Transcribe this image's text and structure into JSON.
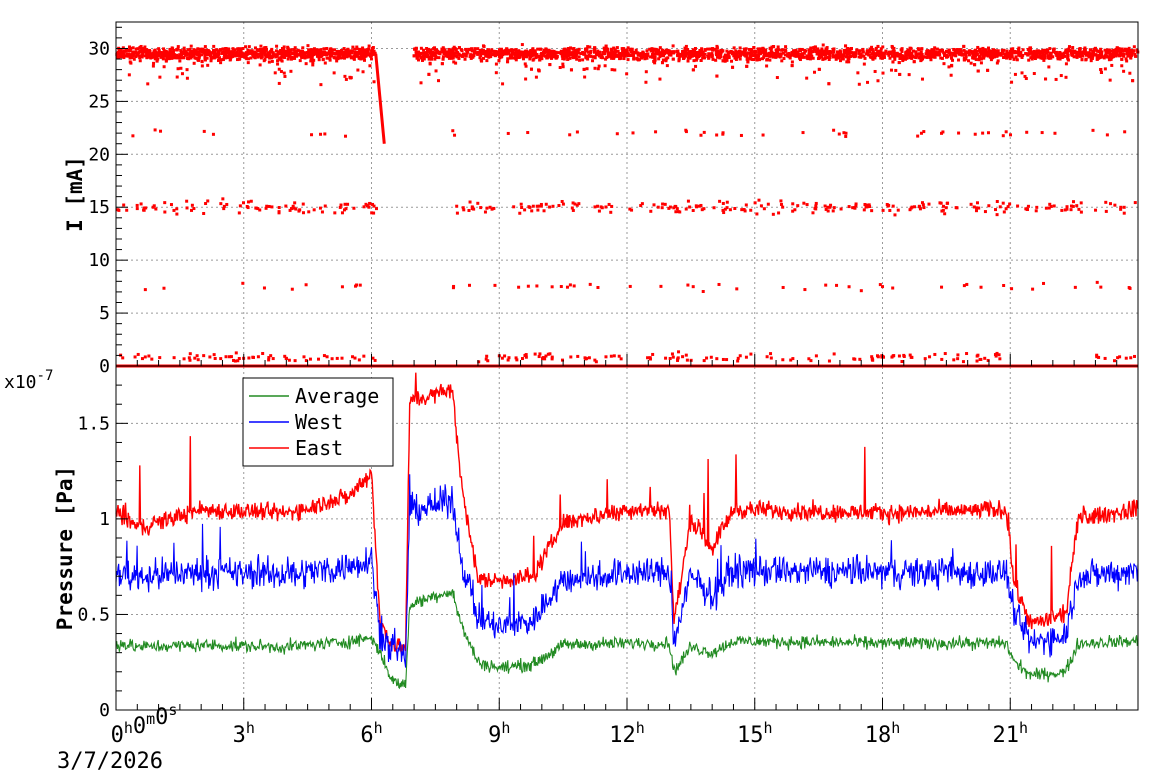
{
  "colors": {
    "average": "#228b22",
    "west": "#0000ff",
    "east": "#ff0000",
    "grid": "#9a9a9a",
    "axis": "#000000"
  },
  "chart_data": [
    {
      "type": "scatter",
      "ylabel": "I [mA]",
      "ylim": [
        0,
        32.5
      ],
      "yticks": [
        0,
        5,
        10,
        15,
        20,
        25,
        30
      ],
      "xlim_hours": [
        0,
        24
      ],
      "grid": true,
      "series": [
        {
          "color": "east",
          "bands": [
            {
              "level": 29.5,
              "spread": 0.9,
              "segments": [
                [
                  0,
                  6.1
                ],
                [
                  7.0,
                  24
                ]
              ]
            },
            {
              "level": 15.0,
              "spread": 0.9,
              "segments": [
                [
                  0.0,
                  6.2
                ],
                [
                  8.0,
                  24
                ]
              ]
            },
            {
              "level": 0.0,
              "spread": 0.0,
              "segments": [
                [
                  0,
                  24
                ]
              ]
            },
            {
              "level": 0.8,
              "spread": 0.6,
              "segments": [
                [
                  0.1,
                  6.1
                ],
                [
                  8.5,
                  20.8
                ],
                [
                  23.0,
                  24
                ]
              ]
            }
          ],
          "drop": {
            "from_hours": 6.1,
            "to_hours": 6.3,
            "from_value": 29.5,
            "to_value": 21.0
          },
          "sparse_levels": [
            22.0,
            7.5
          ]
        }
      ]
    },
    {
      "type": "line",
      "ylabel": "Pressure [Pa]",
      "y_multiplier": "x10",
      "y_exponent": "-7",
      "ylim": [
        0,
        1.8
      ],
      "yticks": [
        "0",
        "0.5",
        "1",
        "1.5"
      ],
      "ytick_values": [
        0,
        0.5,
        1.0,
        1.5
      ],
      "xlim_hours": [
        0,
        24
      ],
      "grid": true,
      "legend": {
        "position": "top-left",
        "entries": [
          "Average",
          "West",
          "East"
        ]
      },
      "series": [
        {
          "name": "Average",
          "color": "average",
          "profile": [
            [
              0,
              0.35
            ],
            [
              0.5,
              0.33
            ],
            [
              2,
              0.34
            ],
            [
              4,
              0.33
            ],
            [
              5.5,
              0.36
            ],
            [
              6.0,
              0.38
            ],
            [
              6.2,
              0.3
            ],
            [
              6.5,
              0.15
            ],
            [
              6.8,
              0.13
            ],
            [
              6.9,
              0.55
            ],
            [
              7.5,
              0.6
            ],
            [
              7.9,
              0.62
            ],
            [
              8.1,
              0.45
            ],
            [
              8.5,
              0.25
            ],
            [
              9.0,
              0.22
            ],
            [
              9.8,
              0.24
            ],
            [
              10.5,
              0.34
            ],
            [
              12,
              0.35
            ],
            [
              13.0,
              0.35
            ],
            [
              13.1,
              0.2
            ],
            [
              13.5,
              0.33
            ],
            [
              14.0,
              0.3
            ],
            [
              14.5,
              0.36
            ],
            [
              18,
              0.35
            ],
            [
              20.9,
              0.35
            ],
            [
              21.1,
              0.25
            ],
            [
              21.5,
              0.18
            ],
            [
              22.3,
              0.2
            ],
            [
              22.6,
              0.35
            ],
            [
              24,
              0.36
            ]
          ],
          "noise": 0.05
        },
        {
          "name": "West",
          "color": "west",
          "profile": [
            [
              0,
              0.72
            ],
            [
              0.5,
              0.7
            ],
            [
              2,
              0.72
            ],
            [
              4,
              0.71
            ],
            [
              5.5,
              0.75
            ],
            [
              6.0,
              0.8
            ],
            [
              6.2,
              0.4
            ],
            [
              6.5,
              0.3
            ],
            [
              6.8,
              0.28
            ],
            [
              6.9,
              1.05
            ],
            [
              7.5,
              1.07
            ],
            [
              7.9,
              1.1
            ],
            [
              8.1,
              0.8
            ],
            [
              8.5,
              0.48
            ],
            [
              9.0,
              0.43
            ],
            [
              9.8,
              0.47
            ],
            [
              10.5,
              0.68
            ],
            [
              12,
              0.72
            ],
            [
              13.0,
              0.72
            ],
            [
              13.1,
              0.35
            ],
            [
              13.5,
              0.7
            ],
            [
              14.0,
              0.6
            ],
            [
              14.5,
              0.73
            ],
            [
              18,
              0.72
            ],
            [
              20.9,
              0.72
            ],
            [
              21.1,
              0.5
            ],
            [
              21.5,
              0.35
            ],
            [
              22.3,
              0.4
            ],
            [
              22.6,
              0.7
            ],
            [
              24,
              0.73
            ]
          ],
          "noise": 0.12
        },
        {
          "name": "East",
          "color": "east",
          "profile": [
            [
              0,
              1.05
            ],
            [
              0.5,
              0.95
            ],
            [
              2,
              1.05
            ],
            [
              4,
              1.03
            ],
            [
              5.5,
              1.12
            ],
            [
              6.0,
              1.25
            ],
            [
              6.2,
              0.45
            ],
            [
              6.5,
              0.35
            ],
            [
              6.8,
              0.32
            ],
            [
              6.9,
              1.62
            ],
            [
              7.5,
              1.65
            ],
            [
              7.9,
              1.68
            ],
            [
              8.1,
              1.2
            ],
            [
              8.5,
              0.68
            ],
            [
              9.0,
              0.68
            ],
            [
              9.8,
              0.7
            ],
            [
              10.5,
              0.98
            ],
            [
              12,
              1.05
            ],
            [
              13.0,
              1.05
            ],
            [
              13.1,
              0.45
            ],
            [
              13.5,
              1.0
            ],
            [
              14.0,
              0.85
            ],
            [
              14.5,
              1.05
            ],
            [
              18,
              1.03
            ],
            [
              20.9,
              1.05
            ],
            [
              21.1,
              0.65
            ],
            [
              21.5,
              0.45
            ],
            [
              22.3,
              0.5
            ],
            [
              22.6,
              1.0
            ],
            [
              24,
              1.05
            ]
          ],
          "noise": 0.07
        }
      ]
    }
  ],
  "time_axis": {
    "origin_label": "0h0m0s",
    "date": "3/7/2026",
    "tick_hours": [
      3,
      6,
      9,
      12,
      15,
      18,
      21
    ],
    "tick_labels": [
      "3h",
      "6h",
      "9h",
      "12h",
      "15h",
      "18h",
      "21h"
    ]
  }
}
